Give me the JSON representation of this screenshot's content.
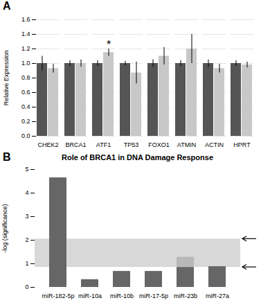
{
  "chart_data": [
    {
      "type": "bar",
      "panel_label": "A",
      "categories": [
        "CHEK2",
        "BRCA1",
        "ATF1",
        "TP53",
        "FOXO1",
        "ATMIN",
        "ACTIN",
        "HPRT"
      ],
      "series": [
        {
          "color": "#555555",
          "values": [
            1.0,
            1.0,
            1.0,
            1.0,
            1.0,
            1.0,
            1.0,
            1.0
          ],
          "errors": [
            0.1,
            0.04,
            0.04,
            0.03,
            0.05,
            0.04,
            0.05,
            0.04
          ]
        },
        {
          "color": "#c8c8c8",
          "values": [
            0.93,
            1.0,
            1.15,
            0.87,
            1.1,
            1.2,
            0.93,
            0.98
          ],
          "errors": [
            0.06,
            0.05,
            0.05,
            0.15,
            0.12,
            0.2,
            0.06,
            0.04
          ]
        }
      ],
      "ylabel": "Relative Expression",
      "ylim": [
        0,
        1.6
      ],
      "yticks": [
        {
          "value": 0,
          "label": "0.0"
        },
        0.2,
        0.4,
        0.6,
        0.8,
        {
          "value": 1,
          "label": "1.0"
        },
        1.2,
        1.4,
        1.6
      ],
      "grid": true,
      "annotations": [
        {
          "text": "*",
          "category": "ATF1",
          "series": 1
        }
      ]
    },
    {
      "type": "bar",
      "stacked": true,
      "panel_label": "B",
      "title": "Role of BRCA1 in DNA Damage Response",
      "categories": [
        "miR-182-5p",
        "miR-10a",
        "miR-10b",
        "miR-17-5p",
        "miR-23b",
        "miR-27a"
      ],
      "series": [
        {
          "color": "#666666",
          "values": [
            4.65,
            0.33,
            0.68,
            0.68,
            0.85,
            0.88
          ]
        },
        {
          "color": "#b8b8b8",
          "values": [
            0.0,
            0.0,
            0.0,
            0.0,
            0.43,
            0.0
          ]
        }
      ],
      "ylabel": "-log (significance)",
      "ylim": [
        0,
        5
      ],
      "yticks": [
        0,
        1,
        2,
        3,
        4,
        5
      ],
      "grid": false,
      "bands": [
        {
          "y1": 0.85,
          "y2": 2.05,
          "color": "#d8d8d8"
        }
      ],
      "arrows": [
        2.05,
        0.85
      ]
    }
  ]
}
